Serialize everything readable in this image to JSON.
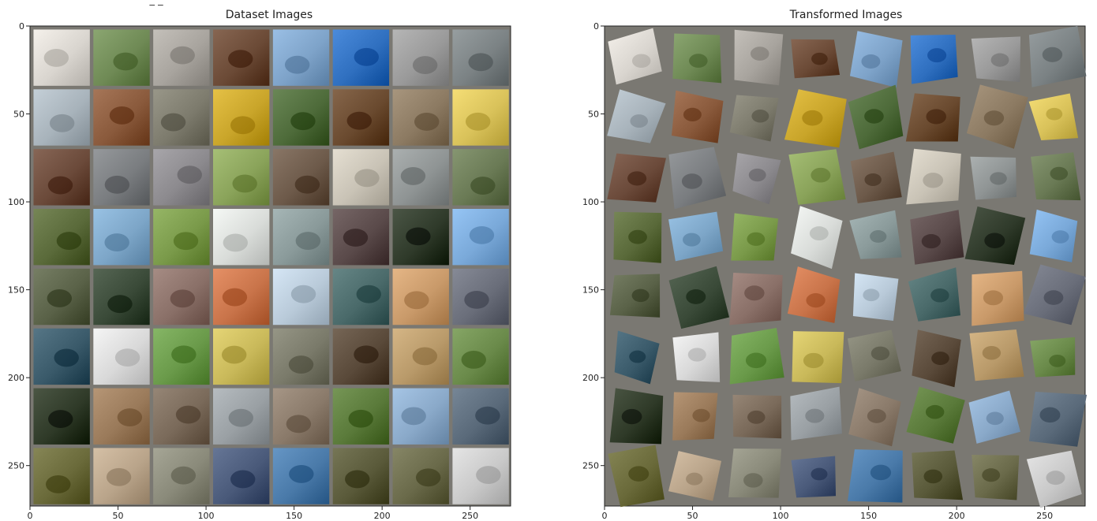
{
  "figure": {
    "clipped_caption": "c    .         _        _           "
  },
  "chart_data": [
    {
      "type": "image",
      "title": "Dataset Images",
      "xlabel": "",
      "ylabel": "",
      "xlim": [
        0,
        273
      ],
      "ylim": [
        273,
        0
      ],
      "xticks": [
        0,
        50,
        100,
        150,
        200,
        250
      ],
      "yticks": [
        0,
        50,
        100,
        150,
        200,
        250
      ],
      "grid": false,
      "grid_rows": 8,
      "grid_cols": 8,
      "tile_size": 32,
      "tile_gap": 2,
      "border_color": "#7a7872",
      "transformed": false
    },
    {
      "type": "image",
      "title": "Transformed Images",
      "xlabel": "",
      "ylabel": "",
      "xlim": [
        0,
        273
      ],
      "ylim": [
        273,
        0
      ],
      "xticks": [
        0,
        50,
        100,
        150,
        200,
        250
      ],
      "yticks": [
        0,
        50,
        100,
        150,
        200,
        250
      ],
      "grid": false,
      "grid_rows": 8,
      "grid_cols": 8,
      "tile_size": 32,
      "tile_gap": 2,
      "border_color": "#7a7872",
      "transformed": true
    }
  ],
  "tile_palette": [
    [
      "#d9d5cf",
      "#6f8a55",
      "#a8a49e",
      "#6b4a36",
      "#7ea3c9",
      "#2f6fbf",
      "#9a9a9a",
      "#7b8284"
    ],
    [
      "#a8b3bb",
      "#8a5a3c",
      "#7d7b6d",
      "#c9a52a",
      "#4e6b3a",
      "#6a4a2f",
      "#8c7a62",
      "#d9c25a"
    ],
    [
      "#6b4a3a",
      "#7a7d80",
      "#8c8a8e",
      "#8aa35a",
      "#6d5a4a",
      "#c9c3b6",
      "#8f9494",
      "#6a7a55"
    ],
    [
      "#5a6a3a",
      "#7da6c8",
      "#7a9a4a",
      "#d9dcd9",
      "#8a9a9a",
      "#5a4a4a",
      "#2f3a2a",
      "#7aa9d9"
    ],
    [
      "#5a6248",
      "#3a4a38",
      "#8a7068",
      "#c9744a",
      "#b9cad9",
      "#4a6a6a",
      "#c99a6a",
      "#6a6e7a"
    ],
    [
      "#3a5a6a",
      "#d9d9d9",
      "#6a9a4a",
      "#c9b95a",
      "#7a7a6a",
      "#5a4a3a",
      "#b99a6a",
      "#6a8a4a"
    ],
    [
      "#2f3a28",
      "#9a7a5a",
      "#7a6a5a",
      "#9aa0a4",
      "#8a7a6a",
      "#5a7a3a",
      "#8aa9c9",
      "#5a6a7a"
    ],
    [
      "#6a6a3a",
      "#b9a48a",
      "#8a8a7a",
      "#4a5a7a",
      "#4a7aa9",
      "#5a5a3a",
      "#6a6a4a",
      "#c9c9c9"
    ]
  ]
}
